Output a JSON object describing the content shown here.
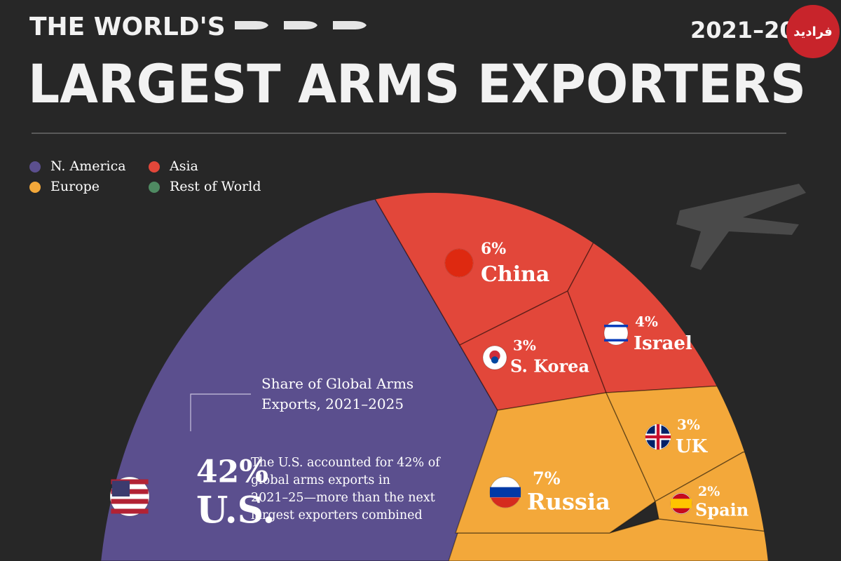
{
  "chart_data": {
    "type": "voronoi",
    "title": "THE WORLD'S",
    "subtitle": "LARGEST ARMS EXPORTERS",
    "period": "2021–20",
    "watermark": "فرادید",
    "annotation": "Share of Global Arms Exports, 2021–2025",
    "note": "The U.S. accounted for 42% of global arms exports in 2021–25—more than the next largest exporters combined",
    "legend": "top-left",
    "series": [
      {
        "name": "N. America",
        "color": "#5b4f8e",
        "categories": [
          "U.S."
        ],
        "values": [
          42
        ],
        "value_labels": [
          "42%"
        ]
      },
      {
        "name": "Asia",
        "color": "#e2473a",
        "categories": [
          "China",
          "S. Korea",
          "Israel"
        ],
        "values": [
          6,
          3,
          4
        ],
        "value_labels": [
          "6%",
          "3%",
          "4%"
        ]
      },
      {
        "name": "Europe",
        "color": "#f3a83a",
        "categories": [
          "Russia",
          "UK",
          "Spain"
        ],
        "values": [
          7,
          3,
          2
        ],
        "value_labels": [
          "7%",
          "3%",
          "2%"
        ]
      },
      {
        "name": "Rest of World",
        "color": "#4f8a62",
        "categories": [],
        "values": [],
        "value_labels": []
      }
    ]
  }
}
